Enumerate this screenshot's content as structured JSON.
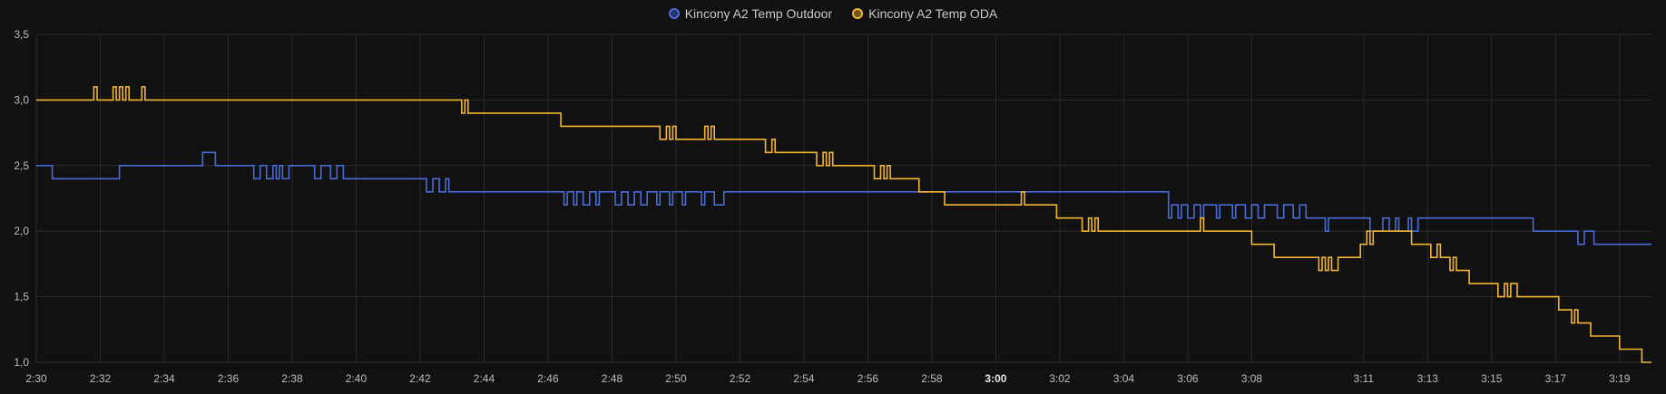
{
  "legend": [
    {
      "label": "Kincony A2 Temp Outdoor",
      "color": "#4a6bd6"
    },
    {
      "label": "Kincony A2 Temp ODA",
      "color": "#f2b531"
    }
  ],
  "chart_data": {
    "type": "line",
    "step": true,
    "title": "",
    "xlabel": "",
    "ylabel": "",
    "ylim": [
      1.0,
      3.5
    ],
    "y_ticks": [
      "1,0",
      "1,5",
      "2,0",
      "2,5",
      "3,0",
      "3,5"
    ],
    "x_range_minutes": [
      0,
      50.5
    ],
    "x_ticks": [
      {
        "label": "2:30",
        "t": 0
      },
      {
        "label": "2:32",
        "t": 2
      },
      {
        "label": "2:34",
        "t": 4
      },
      {
        "label": "2:36",
        "t": 6
      },
      {
        "label": "2:38",
        "t": 8
      },
      {
        "label": "2:40",
        "t": 10
      },
      {
        "label": "2:42",
        "t": 12
      },
      {
        "label": "2:44",
        "t": 14
      },
      {
        "label": "2:46",
        "t": 16
      },
      {
        "label": "2:48",
        "t": 18
      },
      {
        "label": "2:50",
        "t": 20
      },
      {
        "label": "2:52",
        "t": 22
      },
      {
        "label": "2:54",
        "t": 24
      },
      {
        "label": "2:56",
        "t": 26
      },
      {
        "label": "2:58",
        "t": 28
      },
      {
        "label": "3:00",
        "t": 30,
        "bold": true
      },
      {
        "label": "3:02",
        "t": 32
      },
      {
        "label": "3:04",
        "t": 34
      },
      {
        "label": "3:06",
        "t": 36
      },
      {
        "label": "3:08",
        "t": 38
      },
      {
        "label": "3:11",
        "t": 41.5
      },
      {
        "label": "3:13",
        "t": 43.5
      },
      {
        "label": "3:15",
        "t": 45.5
      },
      {
        "label": "3:17",
        "t": 47.5
      },
      {
        "label": "3:19",
        "t": 49.5
      }
    ],
    "grid": true,
    "legend_position": "top-center",
    "series": [
      {
        "name": "Kincony A2 Temp Outdoor",
        "color": "#4a6bd6",
        "points": [
          [
            0,
            2.5
          ],
          [
            0.5,
            2.4
          ],
          [
            2.6,
            2.5
          ],
          [
            5.2,
            2.6
          ],
          [
            5.6,
            2.5
          ],
          [
            6.8,
            2.4
          ],
          [
            7.0,
            2.5
          ],
          [
            7.2,
            2.4
          ],
          [
            7.4,
            2.5
          ],
          [
            7.5,
            2.4
          ],
          [
            7.6,
            2.5
          ],
          [
            7.7,
            2.4
          ],
          [
            7.9,
            2.5
          ],
          [
            8.7,
            2.4
          ],
          [
            8.9,
            2.5
          ],
          [
            9.2,
            2.4
          ],
          [
            9.4,
            2.5
          ],
          [
            9.6,
            2.4
          ],
          [
            12.2,
            2.3
          ],
          [
            12.4,
            2.4
          ],
          [
            12.6,
            2.3
          ],
          [
            12.8,
            2.4
          ],
          [
            12.9,
            2.3
          ],
          [
            16.5,
            2.2
          ],
          [
            16.6,
            2.3
          ],
          [
            16.8,
            2.2
          ],
          [
            16.9,
            2.3
          ],
          [
            17.1,
            2.2
          ],
          [
            17.3,
            2.3
          ],
          [
            17.5,
            2.2
          ],
          [
            17.6,
            2.3
          ],
          [
            18.1,
            2.2
          ],
          [
            18.3,
            2.3
          ],
          [
            18.5,
            2.2
          ],
          [
            18.7,
            2.3
          ],
          [
            18.9,
            2.2
          ],
          [
            19.1,
            2.3
          ],
          [
            19.4,
            2.2
          ],
          [
            19.5,
            2.3
          ],
          [
            19.8,
            2.2
          ],
          [
            19.9,
            2.3
          ],
          [
            20.2,
            2.2
          ],
          [
            20.3,
            2.3
          ],
          [
            20.8,
            2.2
          ],
          [
            20.9,
            2.3
          ],
          [
            21.3,
            2.2
          ],
          [
            21.5,
            2.3
          ],
          [
            21.1,
            2.3
          ],
          [
            21.2,
            2.2
          ],
          [
            35.4,
            2.1
          ],
          [
            35.5,
            2.2
          ],
          [
            35.7,
            2.1
          ],
          [
            35.8,
            2.2
          ],
          [
            36.0,
            2.1
          ],
          [
            36.2,
            2.2
          ],
          [
            36.4,
            2.1
          ],
          [
            36.5,
            2.2
          ],
          [
            36.9,
            2.1
          ],
          [
            37.0,
            2.2
          ],
          [
            37.4,
            2.1
          ],
          [
            37.5,
            2.2
          ],
          [
            37.8,
            2.1
          ],
          [
            38.0,
            2.2
          ],
          [
            38.2,
            2.1
          ],
          [
            38.4,
            2.2
          ],
          [
            38.8,
            2.1
          ],
          [
            39.0,
            2.2
          ],
          [
            39.3,
            2.1
          ],
          [
            39.5,
            2.2
          ],
          [
            39.7,
            2.1
          ],
          [
            40.1,
            2.1
          ],
          [
            40.3,
            2.0
          ],
          [
            40.4,
            2.1
          ],
          [
            41.5,
            2.1
          ],
          [
            41.7,
            2.0
          ],
          [
            42.1,
            2.1
          ],
          [
            42.3,
            2.0
          ],
          [
            42.5,
            2.1
          ],
          [
            42.6,
            2.0
          ],
          [
            42.9,
            2.1
          ],
          [
            43.0,
            2.0
          ],
          [
            43.2,
            2.1
          ],
          [
            46.8,
            2.0
          ],
          [
            48.2,
            1.9
          ],
          [
            48.4,
            2.0
          ],
          [
            48.7,
            1.9
          ],
          [
            50.5,
            1.9
          ]
        ]
      },
      {
        "name": "Kincony A2 Temp ODA",
        "color": "#f2b531",
        "points": [
          [
            0,
            3.0
          ],
          [
            1.8,
            3.1
          ],
          [
            1.9,
            3.0
          ],
          [
            2.4,
            3.1
          ],
          [
            2.5,
            3.0
          ],
          [
            2.6,
            3.1
          ],
          [
            2.7,
            3.0
          ],
          [
            2.8,
            3.1
          ],
          [
            2.9,
            3.0
          ],
          [
            3.3,
            3.1
          ],
          [
            3.4,
            3.0
          ],
          [
            13.3,
            2.9
          ],
          [
            13.4,
            3.0
          ],
          [
            13.5,
            2.9
          ],
          [
            16.4,
            2.8
          ],
          [
            19.5,
            2.7
          ],
          [
            19.7,
            2.8
          ],
          [
            19.8,
            2.7
          ],
          [
            19.9,
            2.8
          ],
          [
            20.0,
            2.7
          ],
          [
            20.9,
            2.8
          ],
          [
            21.0,
            2.7
          ],
          [
            21.1,
            2.8
          ],
          [
            21.2,
            2.7
          ],
          [
            22.8,
            2.6
          ],
          [
            23.0,
            2.7
          ],
          [
            23.1,
            2.6
          ],
          [
            24.4,
            2.5
          ],
          [
            24.6,
            2.6
          ],
          [
            24.7,
            2.5
          ],
          [
            24.8,
            2.6
          ],
          [
            24.9,
            2.5
          ],
          [
            26.2,
            2.4
          ],
          [
            26.4,
            2.5
          ],
          [
            26.5,
            2.4
          ],
          [
            26.6,
            2.5
          ],
          [
            26.7,
            2.4
          ],
          [
            27.6,
            2.3
          ],
          [
            28.4,
            2.2
          ],
          [
            30.8,
            2.3
          ],
          [
            30.9,
            2.2
          ],
          [
            31.9,
            2.1
          ],
          [
            32.7,
            2.0
          ],
          [
            32.9,
            2.1
          ],
          [
            33.0,
            2.0
          ],
          [
            33.1,
            2.1
          ],
          [
            33.2,
            2.0
          ],
          [
            36.4,
            2.1
          ],
          [
            36.5,
            2.0
          ],
          [
            38.0,
            1.9
          ],
          [
            38.7,
            1.8
          ],
          [
            40.1,
            1.7
          ],
          [
            40.2,
            1.8
          ],
          [
            40.3,
            1.7
          ],
          [
            40.4,
            1.8
          ],
          [
            40.5,
            1.7
          ],
          [
            40.7,
            1.8
          ],
          [
            41.4,
            1.9
          ],
          [
            41.6,
            2.0
          ],
          [
            41.7,
            1.9
          ],
          [
            41.8,
            2.0
          ],
          [
            43.0,
            1.9
          ],
          [
            43.6,
            1.8
          ],
          [
            43.8,
            1.9
          ],
          [
            43.9,
            1.8
          ],
          [
            44.2,
            1.7
          ],
          [
            44.3,
            1.8
          ],
          [
            44.4,
            1.7
          ],
          [
            44.8,
            1.6
          ],
          [
            45.7,
            1.5
          ],
          [
            45.9,
            1.6
          ],
          [
            46.0,
            1.5
          ],
          [
            46.1,
            1.6
          ],
          [
            46.3,
            1.5
          ],
          [
            47.6,
            1.4
          ],
          [
            48.0,
            1.3
          ],
          [
            48.1,
            1.4
          ],
          [
            48.2,
            1.3
          ],
          [
            48.6,
            1.2
          ],
          [
            49.5,
            1.1
          ],
          [
            50.2,
            1.0
          ],
          [
            50.5,
            1.0
          ]
        ]
      }
    ]
  }
}
